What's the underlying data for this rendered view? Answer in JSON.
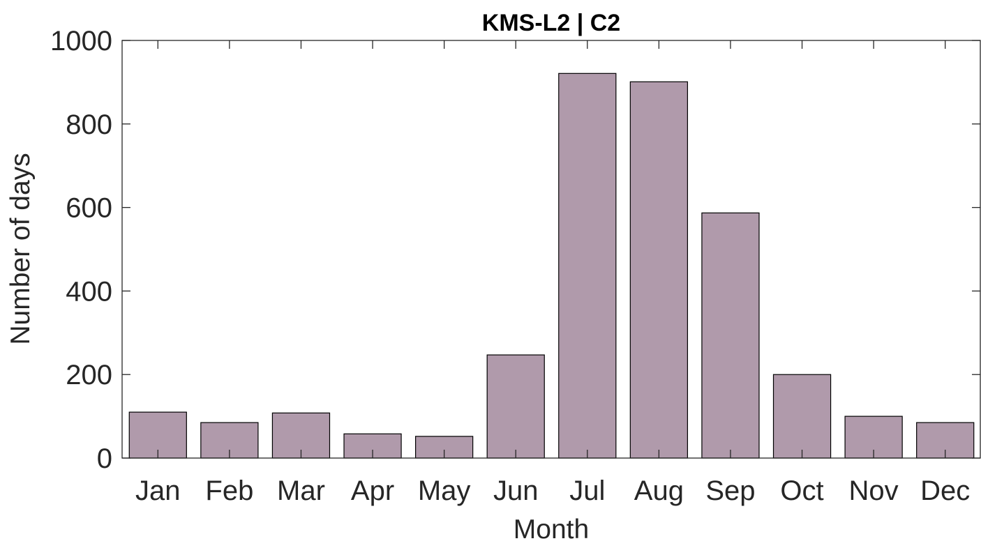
{
  "chart_data": {
    "type": "bar",
    "title": "KMS-L2 | C2",
    "xlabel": "Month",
    "ylabel": "Number of days",
    "categories": [
      "Jan",
      "Feb",
      "Mar",
      "Apr",
      "May",
      "Jun",
      "Jul",
      "Aug",
      "Sep",
      "Oct",
      "Nov",
      "Dec"
    ],
    "values": [
      110,
      85,
      108,
      58,
      52,
      247,
      921,
      901,
      587,
      200,
      100,
      85
    ],
    "ylim": [
      0,
      1000
    ],
    "yticks": [
      0,
      200,
      400,
      600,
      800,
      1000
    ],
    "grid": false,
    "legend": "none",
    "colors": {
      "bar_fill": "#b09aab",
      "bar_edge": "#000000",
      "axis": "#262626"
    }
  }
}
